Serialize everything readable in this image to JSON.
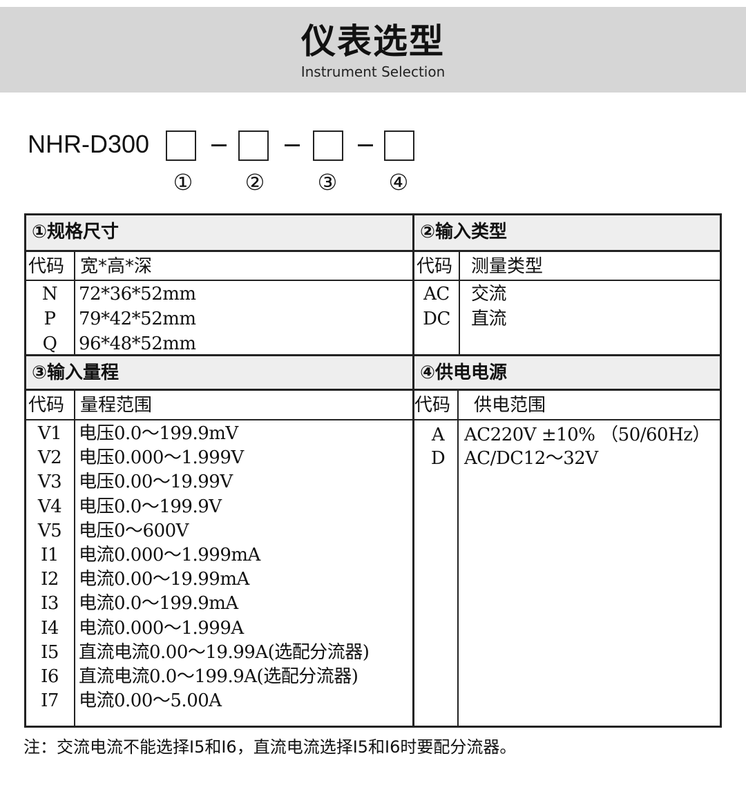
{
  "header": {
    "title": "仪表选型",
    "subtitle": "Instrument Selection"
  },
  "model": {
    "prefix": "NHR-D300",
    "positions": [
      "①",
      "②",
      "③",
      "④"
    ]
  },
  "sections": {
    "size": {
      "title": "①规格尺寸",
      "col_code": "代码",
      "col_desc": "宽*高*深",
      "rows": [
        {
          "code": "N",
          "desc": "72*36*52mm"
        },
        {
          "code": "P",
          "desc": "79*42*52mm"
        },
        {
          "code": "Q",
          "desc": "96*48*52mm"
        }
      ]
    },
    "input_type": {
      "title": "②输入类型",
      "col_code": "代码",
      "col_desc": "测量类型",
      "rows": [
        {
          "code": "AC",
          "desc": "交流"
        },
        {
          "code": "DC",
          "desc": "直流"
        }
      ]
    },
    "range": {
      "title": "③输入量程",
      "col_code": "代码",
      "col_desc": "量程范围",
      "rows": [
        {
          "code": "V1",
          "desc": "电压0.0～199.9mV"
        },
        {
          "code": "V2",
          "desc": "电压0.000～1.999V"
        },
        {
          "code": "V3",
          "desc": "电压0.00～19.99V"
        },
        {
          "code": "V4",
          "desc": "电压0.0～199.9V"
        },
        {
          "code": "V5",
          "desc": "电压0～600V"
        },
        {
          "code": "I1",
          "desc": "电流0.000～1.999mA"
        },
        {
          "code": "I2",
          "desc": "电流0.00～19.99mA"
        },
        {
          "code": "I3",
          "desc": "电流0.0～199.9mA"
        },
        {
          "code": "I4",
          "desc": "电流0.000～1.999A"
        },
        {
          "code": "I5",
          "desc": "直流电流0.00～19.99A(选配分流器)"
        },
        {
          "code": "I6",
          "desc": "直流电流0.0～199.9A(选配分流器)"
        },
        {
          "code": "I7",
          "desc": "电流0.00～5.00A"
        }
      ]
    },
    "power": {
      "title": "④供电电源",
      "col_code": "代码",
      "col_desc": "供电范围",
      "rows": [
        {
          "code": "A",
          "desc": "AC220V ±10% （50/60Hz）"
        },
        {
          "code": "D",
          "desc": "AC/DC12～32V"
        }
      ]
    }
  },
  "note": "注：交流电流不能选择I5和I6，直流电流选择I5和I6时要配分流器。"
}
